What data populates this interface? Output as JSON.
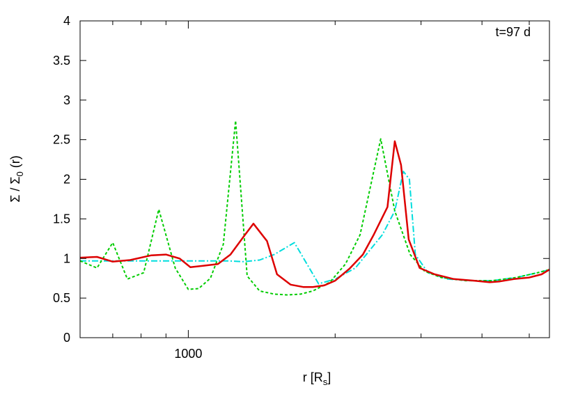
{
  "chart_data": {
    "type": "line",
    "annotation": "t=97 d",
    "xlabel": "r [Rs]",
    "xlabel_main": "r [R",
    "xlabel_sub": "s",
    "xlabel_close": "]",
    "ylabel": "Σ / Σ0 (r)",
    "ylabel_main": "Σ / Σ",
    "ylabel_sub": "0",
    "ylabel_tail": " (r)",
    "x_scale": "log",
    "xlim": [
      600,
      5500
    ],
    "ylim": [
      0,
      4
    ],
    "grid": false,
    "legend": "none",
    "x_ticks": [
      {
        "value": 1000,
        "label": "1000"
      }
    ],
    "x_minor_ticks": [
      700,
      800,
      900,
      2000,
      3000,
      4000,
      5000
    ],
    "y_ticks": [
      {
        "value": 0,
        "label": "0"
      },
      {
        "value": 0.5,
        "label": "0.5"
      },
      {
        "value": 1,
        "label": "1"
      },
      {
        "value": 1.5,
        "label": "1.5"
      },
      {
        "value": 2,
        "label": "2"
      },
      {
        "value": 2.5,
        "label": "2.5"
      },
      {
        "value": 3,
        "label": "3"
      },
      {
        "value": 3.5,
        "label": "3.5"
      },
      {
        "value": 4,
        "label": "4"
      }
    ],
    "series": [
      {
        "color": "#00dddd",
        "style": "dash-dot",
        "points": [
          [
            600,
            0.97
          ],
          [
            700,
            0.97
          ],
          [
            800,
            0.97
          ],
          [
            900,
            0.97
          ],
          [
            1000,
            0.97
          ],
          [
            1200,
            0.97
          ],
          [
            1300,
            0.96
          ],
          [
            1400,
            0.98
          ],
          [
            1500,
            1.05
          ],
          [
            1650,
            1.2
          ],
          [
            1850,
            0.68
          ],
          [
            2000,
            0.74
          ],
          [
            2200,
            0.88
          ],
          [
            2500,
            1.3
          ],
          [
            2650,
            1.6
          ],
          [
            2760,
            2.1
          ],
          [
            2840,
            2.0
          ],
          [
            2920,
            1.05
          ],
          [
            3100,
            0.82
          ],
          [
            3400,
            0.74
          ],
          [
            3800,
            0.72
          ],
          [
            4200,
            0.72
          ],
          [
            4700,
            0.76
          ],
          [
            5200,
            0.82
          ],
          [
            5500,
            0.86
          ]
        ]
      },
      {
        "color": "#00cc00",
        "style": "dashed",
        "points": [
          [
            600,
            0.97
          ],
          [
            650,
            0.88
          ],
          [
            700,
            1.2
          ],
          [
            750,
            0.74
          ],
          [
            810,
            0.82
          ],
          [
            870,
            1.62
          ],
          [
            940,
            0.88
          ],
          [
            1000,
            0.61
          ],
          [
            1050,
            0.62
          ],
          [
            1110,
            0.75
          ],
          [
            1180,
            1.18
          ],
          [
            1250,
            2.74
          ],
          [
            1320,
            0.78
          ],
          [
            1400,
            0.59
          ],
          [
            1500,
            0.55
          ],
          [
            1600,
            0.54
          ],
          [
            1700,
            0.55
          ],
          [
            1800,
            0.59
          ],
          [
            1950,
            0.7
          ],
          [
            2100,
            0.93
          ],
          [
            2250,
            1.3
          ],
          [
            2480,
            2.51
          ],
          [
            2650,
            1.6
          ],
          [
            2850,
            1.05
          ],
          [
            3050,
            0.84
          ],
          [
            3300,
            0.76
          ],
          [
            3700,
            0.72
          ],
          [
            4200,
            0.72
          ],
          [
            4700,
            0.76
          ],
          [
            5200,
            0.82
          ],
          [
            5500,
            0.86
          ]
        ]
      },
      {
        "color": "#dd0000",
        "style": "solid",
        "points": [
          [
            600,
            1.01
          ],
          [
            650,
            1.02
          ],
          [
            700,
            0.96
          ],
          [
            760,
            0.98
          ],
          [
            840,
            1.04
          ],
          [
            900,
            1.05
          ],
          [
            960,
            1.0
          ],
          [
            1010,
            0.89
          ],
          [
            1080,
            0.91
          ],
          [
            1150,
            0.93
          ],
          [
            1220,
            1.05
          ],
          [
            1300,
            1.28
          ],
          [
            1360,
            1.44
          ],
          [
            1450,
            1.22
          ],
          [
            1520,
            0.8
          ],
          [
            1620,
            0.67
          ],
          [
            1720,
            0.64
          ],
          [
            1800,
            0.64
          ],
          [
            1900,
            0.66
          ],
          [
            2000,
            0.72
          ],
          [
            2140,
            0.87
          ],
          [
            2280,
            1.05
          ],
          [
            2400,
            1.3
          ],
          [
            2560,
            1.65
          ],
          [
            2650,
            2.48
          ],
          [
            2730,
            2.18
          ],
          [
            2830,
            1.24
          ],
          [
            2980,
            0.88
          ],
          [
            3200,
            0.8
          ],
          [
            3500,
            0.74
          ],
          [
            3850,
            0.72
          ],
          [
            4150,
            0.7
          ],
          [
            4350,
            0.71
          ],
          [
            4650,
            0.74
          ],
          [
            5000,
            0.76
          ],
          [
            5300,
            0.8
          ],
          [
            5500,
            0.86
          ]
        ]
      }
    ]
  }
}
